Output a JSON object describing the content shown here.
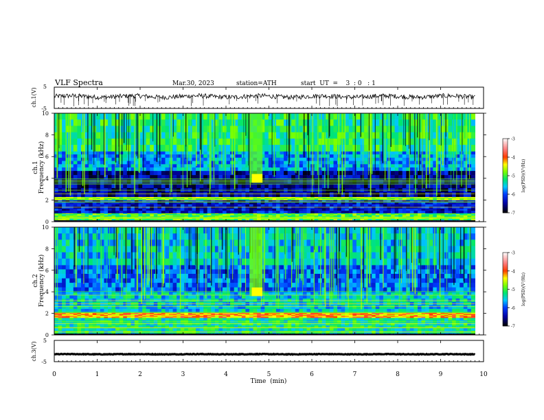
{
  "header": {
    "title": "VLF  Spectra",
    "date": "Mar.30, 2023",
    "station": "station=ATH",
    "start_ut": "start  UT  =    3  : 0   : 1"
  },
  "chart_data": [
    {
      "type": "line",
      "panel": "ch1-waveform",
      "ylabel": "ch.1(V)",
      "y_ticks": [
        "5",
        "-5"
      ],
      "ylim": [
        -5,
        5
      ],
      "xlim": [
        0,
        10
      ],
      "x_end": 9.8,
      "baseline": 0.6,
      "color": "#000000"
    },
    {
      "type": "heatmap",
      "panel": "ch1-spectrogram",
      "ylabel": "ch.1\nFrequency  (kHz)",
      "ylabel_lines": [
        "ch.1",
        "Frequency  (kHz)"
      ],
      "y_ticks": [
        "0",
        "2",
        "4",
        "6",
        "8",
        "10"
      ],
      "ylim": [
        0,
        10
      ],
      "xlim": [
        0,
        10
      ],
      "x_end": 9.8,
      "bands": [
        {
          "f": [
            0,
            0.15
          ],
          "level": -7
        },
        {
          "f": [
            0.15,
            0.8
          ],
          "level": -5
        },
        {
          "f": [
            0.8,
            2.0
          ],
          "level": -6.3
        },
        {
          "f": [
            2.0,
            2.3
          ],
          "level": -4.8
        },
        {
          "f": [
            2.3,
            4.7
          ],
          "level": -6.5
        },
        {
          "f": [
            4.7,
            6.5
          ],
          "level": -5.7
        },
        {
          "f": [
            6.5,
            10
          ],
          "level": -5.2
        }
      ],
      "burst": {
        "t": [
          4.55,
          4.85
        ],
        "f": [
          3.6,
          10
        ],
        "level": -4.9
      }
    },
    {
      "type": "heatmap",
      "panel": "ch2-spectrogram",
      "ylabel": "ch.2\nFrequency  (kHz)",
      "ylabel_lines": [
        "ch.2",
        "Frequency  (kHz)"
      ],
      "y_ticks": [
        "0",
        "2",
        "4",
        "6",
        "8",
        "10"
      ],
      "ylim": [
        0,
        10
      ],
      "xlim": [
        0,
        10
      ],
      "x_end": 9.8,
      "bands": [
        {
          "f": [
            0,
            0.15
          ],
          "level": -7
        },
        {
          "f": [
            0.15,
            1.6
          ],
          "level": -5.3
        },
        {
          "f": [
            1.6,
            2.1
          ],
          "level": -4.2
        },
        {
          "f": [
            2.1,
            4.0
          ],
          "level": -5.5
        },
        {
          "f": [
            4.0,
            6.5
          ],
          "level": -5.9
        },
        {
          "f": [
            6.5,
            10
          ],
          "level": -5.5
        }
      ],
      "burst": {
        "t": [
          4.55,
          4.85
        ],
        "f": [
          3.6,
          10
        ],
        "level": -4.8
      }
    },
    {
      "type": "line",
      "panel": "ch3-waveform",
      "ylabel": "ch.3(V)",
      "y_ticks": [
        "5",
        "0",
        "-5"
      ],
      "ylim": [
        -5,
        5
      ],
      "xlim": [
        0,
        10
      ],
      "x_end": 9.8,
      "baseline": -1.5,
      "color": "#000000"
    }
  ],
  "x_axis": {
    "label": "Time  (min)",
    "ticks": [
      "0",
      "1",
      "2",
      "3",
      "4",
      "5",
      "6",
      "7",
      "8",
      "9",
      "10"
    ]
  },
  "colorbars": [
    {
      "label": "log(PSD)(V²/Hz)",
      "ticks": [
        "-3",
        "-4",
        "-5",
        "-6",
        "-7"
      ],
      "range": [
        -7,
        -3
      ]
    },
    {
      "label": "log(PSD)(V²/Hz)",
      "ticks": [
        "-3",
        "-4",
        "-5",
        "-6",
        "-7"
      ],
      "range": [
        -7,
        -3
      ]
    }
  ]
}
